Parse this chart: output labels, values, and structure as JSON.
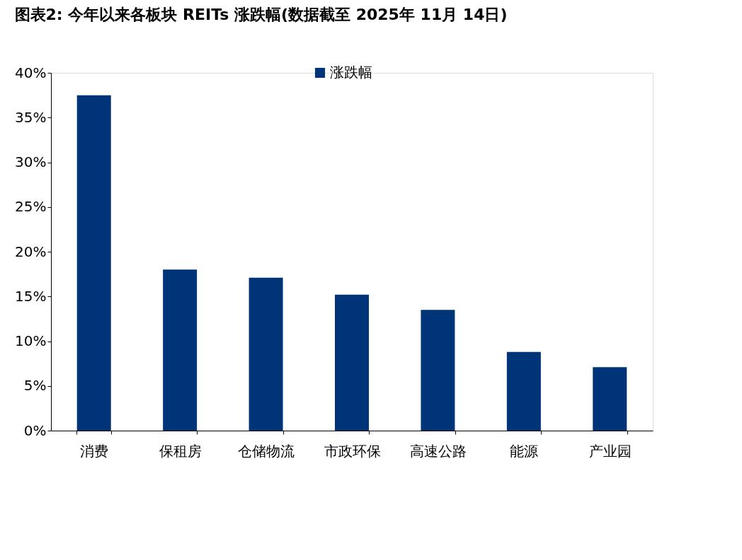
{
  "chart_data": {
    "type": "bar",
    "title": "图表2:  今年以来各板块 REITs 涨跌幅(数据截至 2025年 11月 14日)",
    "categories": [
      "消费",
      "保租房",
      "仓储物流",
      "市政环保",
      "高速公路",
      "能源",
      "产业园"
    ],
    "series": [
      {
        "name": "涨跌幅",
        "color": "#003478",
        "values": [
          37.5,
          18.0,
          17.1,
          15.2,
          13.5,
          8.8,
          7.1
        ]
      }
    ],
    "ylim": [
      0,
      40
    ],
    "yticks": [
      {
        "value": 0,
        "label": "0%"
      },
      {
        "value": 5,
        "label": "5%"
      },
      {
        "value": 10,
        "label": "10%"
      },
      {
        "value": 15,
        "label": "15%"
      },
      {
        "value": 20,
        "label": "20%"
      },
      {
        "value": 25,
        "label": "25%"
      },
      {
        "value": 30,
        "label": "30%"
      },
      {
        "value": 35,
        "label": "35%"
      },
      {
        "value": 40,
        "label": "40%"
      }
    ],
    "grid": false,
    "legend": "top"
  }
}
